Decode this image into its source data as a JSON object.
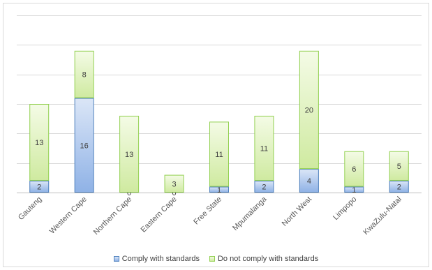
{
  "chart_data": {
    "type": "bar",
    "stacked": true,
    "categories": [
      "Gauteng",
      "Western Cape",
      "Northern Cape",
      "Eastern Cape",
      "Free State",
      "Mpumalanga",
      "North West",
      "Limpopo",
      "KwaZulu-Natal"
    ],
    "series": [
      {
        "name": "Comply with standards",
        "values": [
          2,
          16,
          0,
          0,
          1,
          2,
          4,
          1,
          2
        ],
        "fill_top": "#dbe6f7",
        "fill_bottom": "#8fb2e6",
        "stroke": "#4f81bd"
      },
      {
        "name": "Do not comply with standards",
        "values": [
          13,
          8,
          13,
          3,
          11,
          11,
          20,
          6,
          5
        ],
        "fill_top": "#f4fbe6",
        "fill_bottom": "#cfeaa0",
        "stroke": "#92d050"
      }
    ],
    "ylim": [
      0,
      30
    ],
    "y_gridline_step": 5,
    "y_tick_labels_shown": false,
    "grid": true,
    "legend_position": "bottom"
  }
}
